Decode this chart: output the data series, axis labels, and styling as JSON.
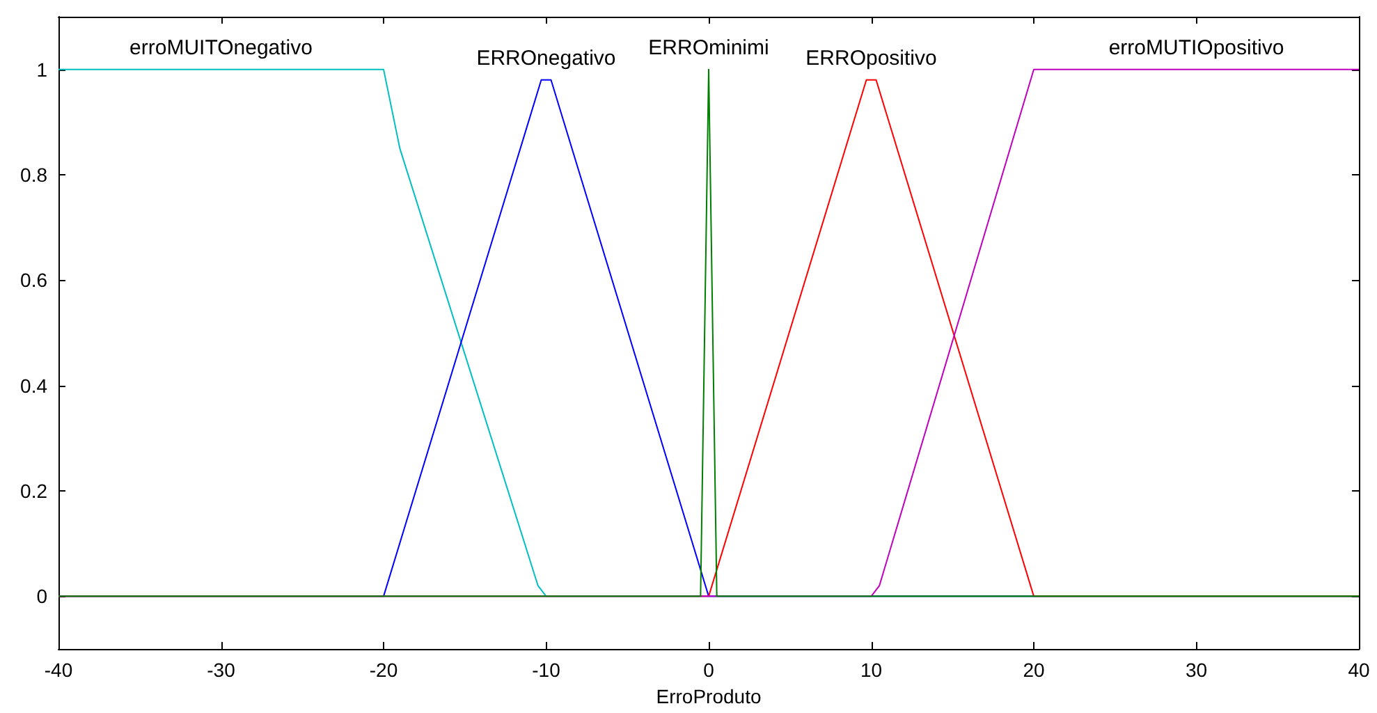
{
  "chart_data": {
    "type": "line",
    "xlabel": "ErroProduto",
    "xlim": [
      -40,
      40
    ],
    "xticks": [
      -40,
      -30,
      -20,
      -10,
      0,
      10,
      20,
      30,
      40
    ],
    "ylim": [
      -0.1,
      1.1
    ],
    "yticks": [
      0,
      0.2,
      0.4,
      0.6,
      0.8,
      1
    ],
    "grid": false,
    "legend": false,
    "marker": "none",
    "line_style": "solid",
    "series": [
      {
        "name": "erroMUITOnegativo",
        "color": "#00bfbf",
        "x": [
          -40,
          -20,
          -19,
          -10.5,
          -10,
          40
        ],
        "values": [
          1,
          1,
          0.85,
          0.02,
          0,
          0
        ]
      },
      {
        "name": "ERROnegativo",
        "color": "#0000ff",
        "x": [
          -40,
          -20,
          -10.3,
          -9.7,
          0,
          40
        ],
        "values": [
          0,
          0,
          0.98,
          0.98,
          0,
          0
        ]
      },
      {
        "name": "ERROpositivo",
        "color": "#ff0000",
        "x": [
          -40,
          0,
          9.7,
          10.3,
          20,
          40
        ],
        "values": [
          0,
          0,
          0.98,
          0.98,
          0,
          0
        ]
      },
      {
        "name": "erroMUTIOpositivo",
        "color": "#bf00bf",
        "x": [
          -40,
          10,
          10.5,
          20,
          40
        ],
        "values": [
          0,
          0,
          0.02,
          1,
          1
        ]
      },
      {
        "name": "ERROminimi",
        "color": "#008000",
        "x": [
          -40,
          -0.5,
          0,
          0.5,
          40
        ],
        "values": [
          0,
          0,
          1,
          0,
          0
        ]
      }
    ]
  }
}
